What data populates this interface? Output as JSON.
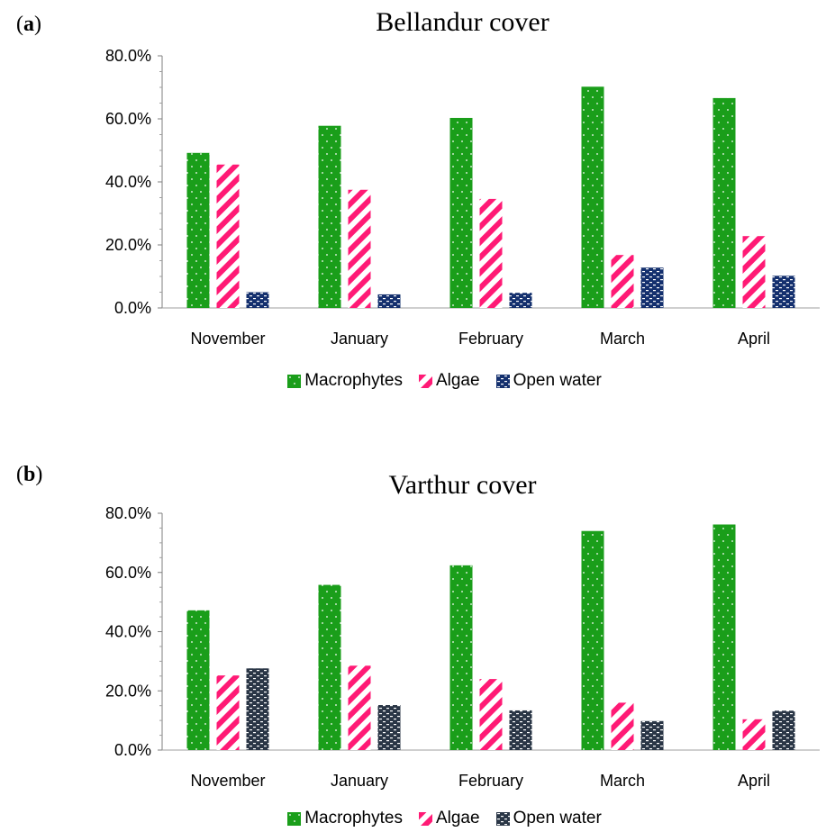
{
  "panels": [
    {
      "label": "a",
      "chart_data": {
        "type": "bar",
        "title": "Bellandur cover",
        "categories": [
          "November",
          "January",
          "February",
          "March",
          "April"
        ],
        "series": [
          {
            "name": "Macrophytes",
            "values": [
              49.2,
              57.8,
              60.3,
              70.2,
              66.6
            ],
            "color": "#1a9e1a"
          },
          {
            "name": "Algae",
            "values": [
              45.5,
              37.5,
              34.6,
              16.8,
              22.8
            ],
            "color": "#ff1a75"
          },
          {
            "name": "Open water",
            "values": [
              5.0,
              4.3,
              4.8,
              12.8,
              10.2
            ],
            "color": "#14306e"
          }
        ],
        "ylim": [
          0,
          80
        ],
        "yticks": [
          "0.0%",
          "20.0%",
          "40.0%",
          "60.0%",
          "80.0%"
        ],
        "legend": "bottom"
      }
    },
    {
      "label": "b",
      "chart_data": {
        "type": "bar",
        "title": "Varthur cover",
        "categories": [
          "November",
          "January",
          "February",
          "March",
          "April"
        ],
        "series": [
          {
            "name": "Macrophytes",
            "values": [
              47.2,
              55.8,
              62.4,
              74.0,
              76.2
            ],
            "color": "#1a9e1a"
          },
          {
            "name": "Algae",
            "values": [
              25.2,
              28.5,
              24.0,
              16.0,
              10.4
            ],
            "color": "#ff1a75"
          },
          {
            "name": "Open water",
            "values": [
              27.6,
              15.2,
              13.4,
              9.8,
              13.3
            ],
            "color": "#2a3646"
          }
        ],
        "ylim": [
          0,
          80
        ],
        "yticks": [
          "0.0%",
          "20.0%",
          "40.0%",
          "60.0%",
          "80.0%"
        ],
        "legend": "bottom"
      }
    }
  ]
}
